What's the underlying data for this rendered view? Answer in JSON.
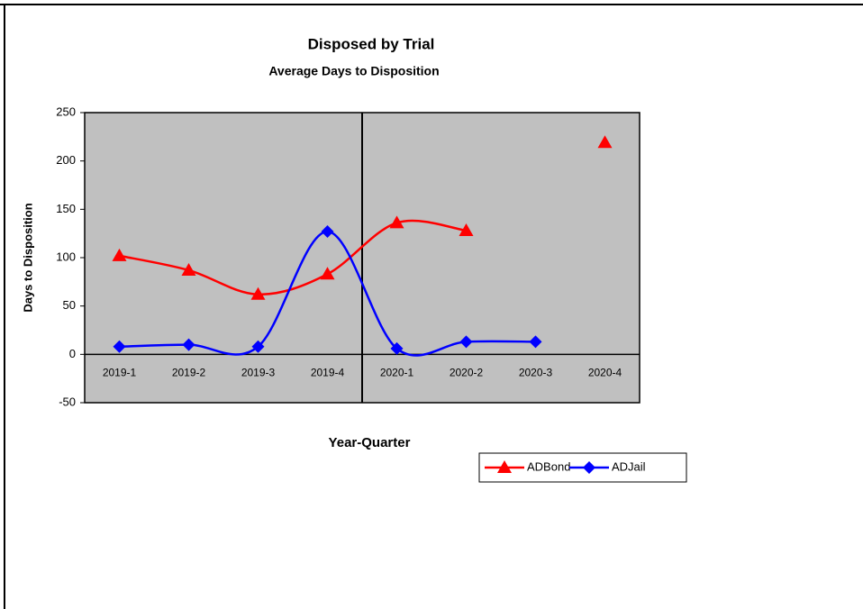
{
  "chart_data": {
    "type": "line",
    "title": "Disposed by Trial",
    "subtitle": "Average Days to Disposition",
    "y_label": "Days to Disposition",
    "x_label": "Year-Quarter",
    "categories": [
      "2019-1",
      "2019-2",
      "2019-3",
      "2019-4",
      "2020-1",
      "2020-2",
      "2020-3",
      "2020-4"
    ],
    "series": [
      {
        "name": "ADBond",
        "color": "#ff0000",
        "marker": "triangle",
        "values": [
          102,
          87,
          62,
          83,
          136,
          128,
          null,
          219
        ]
      },
      {
        "name": "ADJail",
        "color": "#0000ff",
        "marker": "diamond",
        "values": [
          8,
          10,
          8,
          127,
          6,
          13,
          13,
          null
        ]
      }
    ],
    "ylim": [
      -50,
      250
    ],
    "yticks": [
      -50,
      0,
      50,
      100,
      150,
      200,
      250
    ],
    "smooth": true,
    "legend": "bottom"
  }
}
